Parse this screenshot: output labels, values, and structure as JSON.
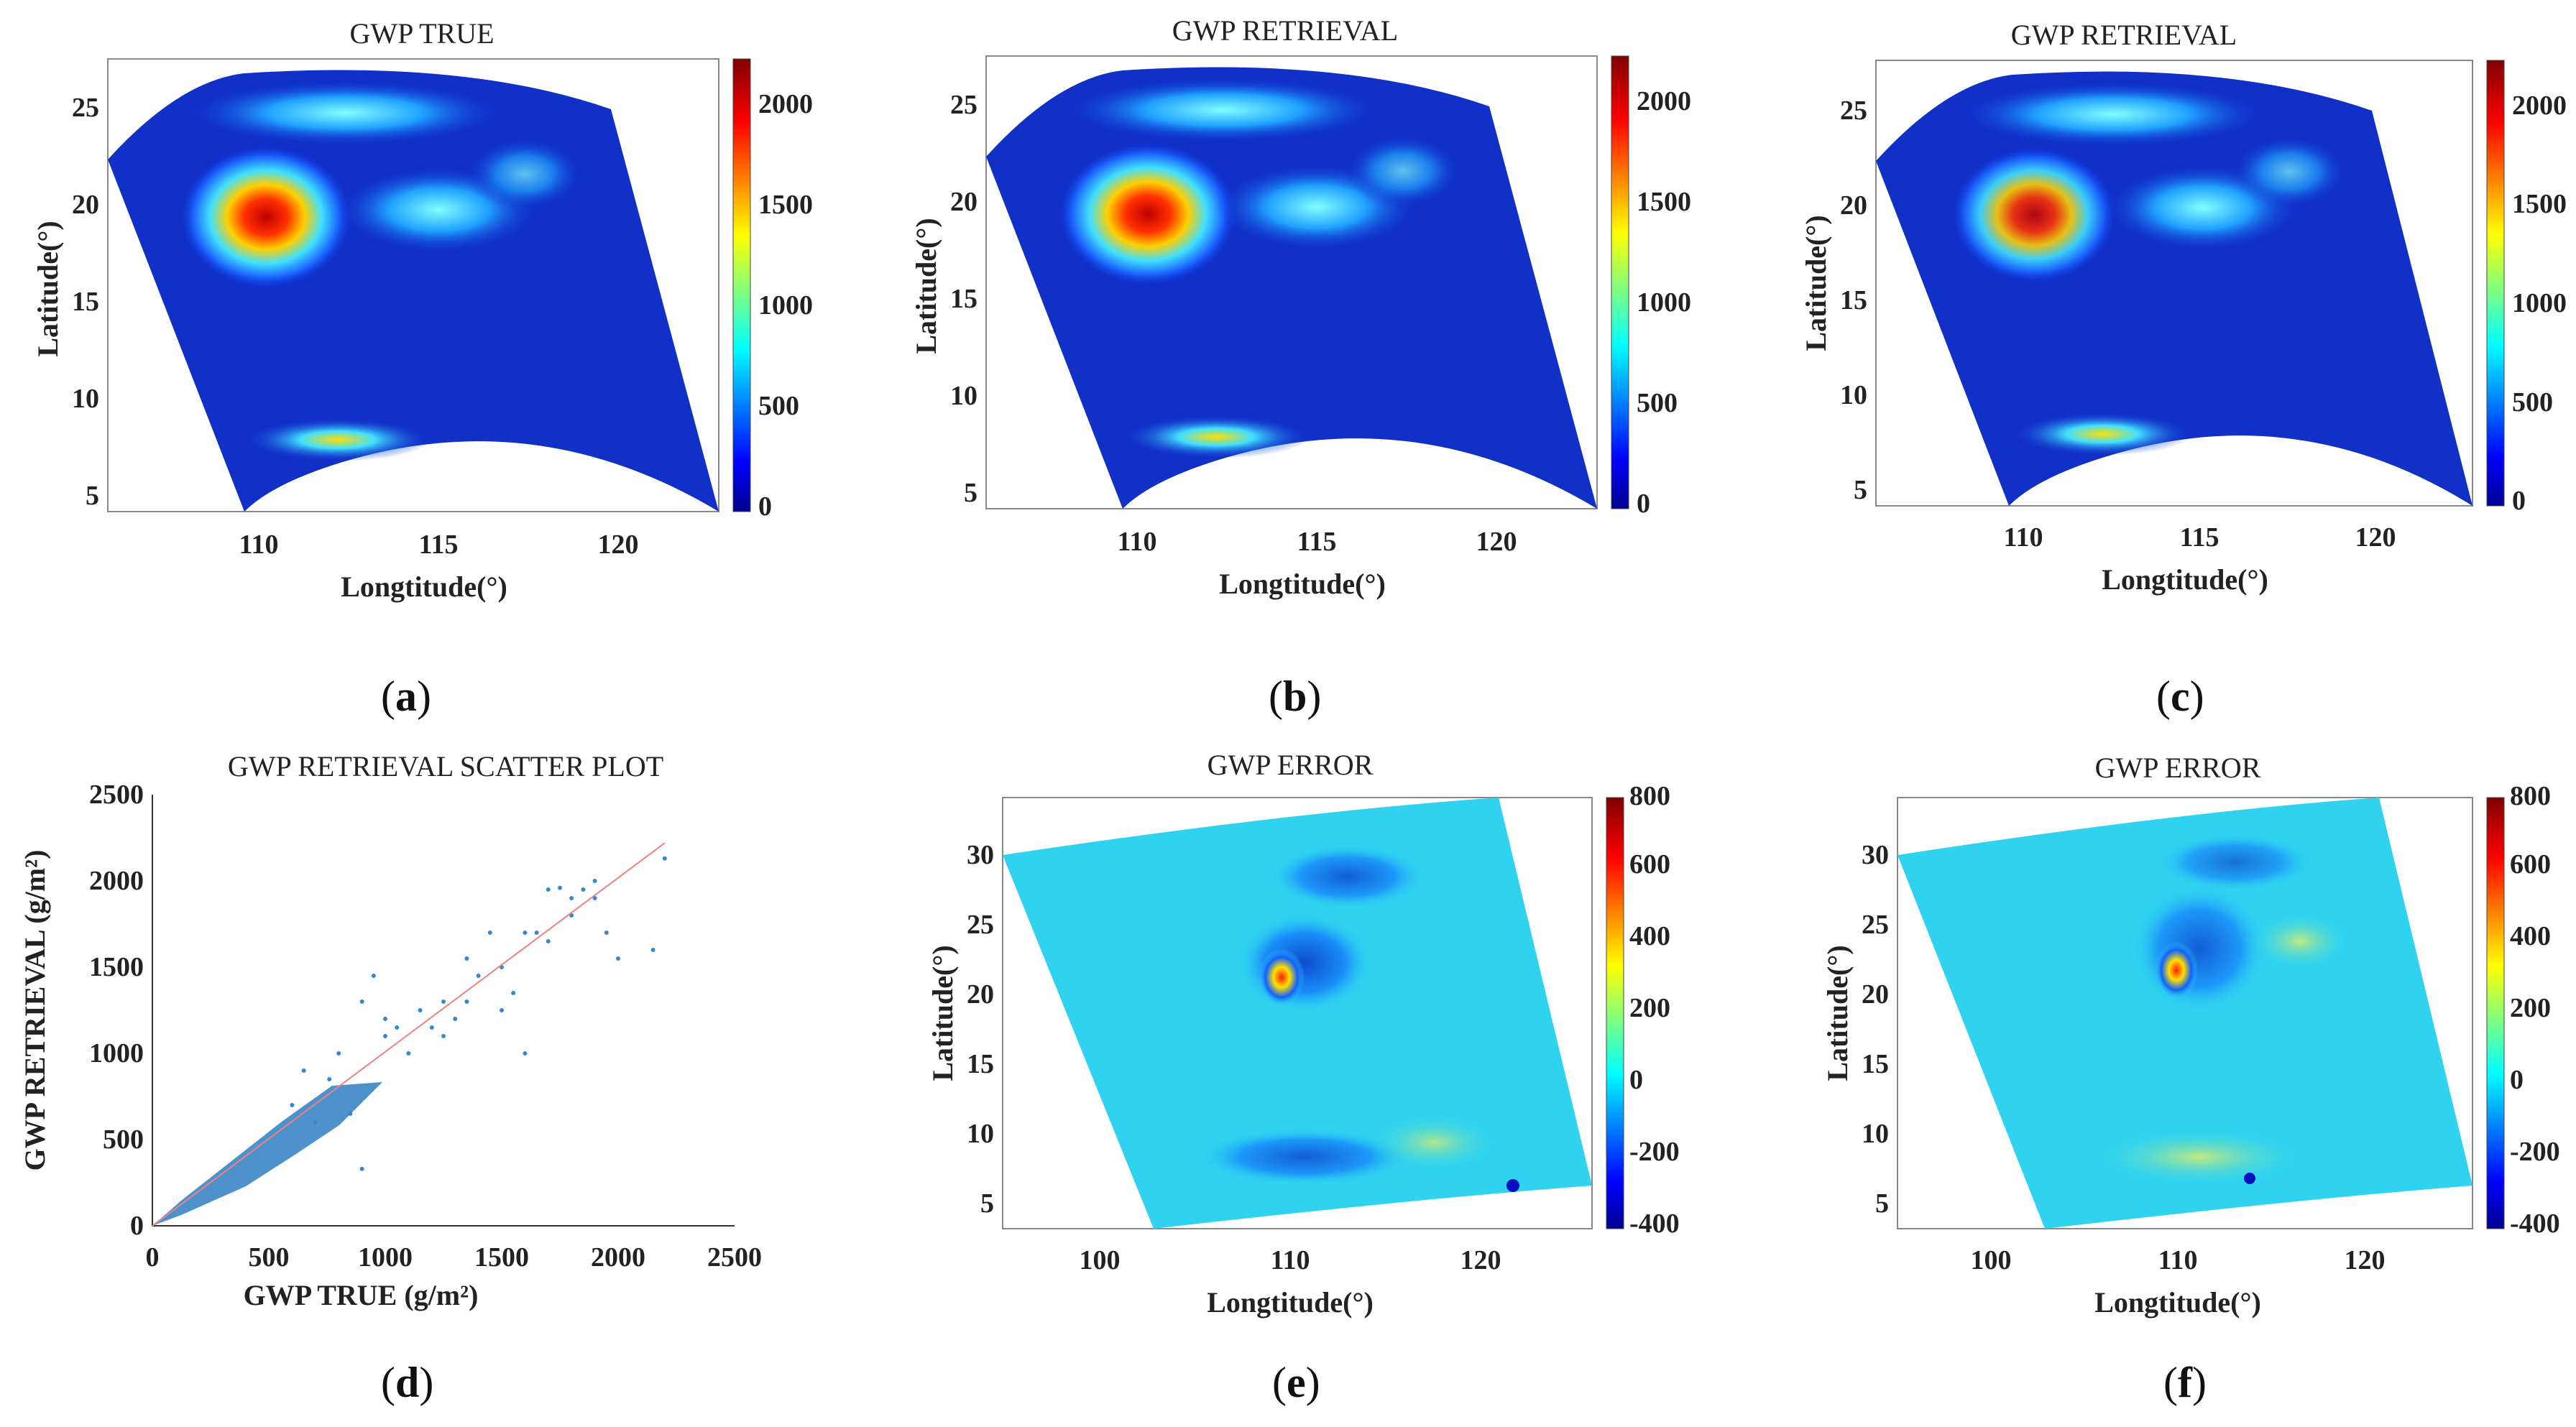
{
  "colors": {
    "jet_low": "#00008f",
    "jet_mid": "#00c8ff",
    "jet_high": "#800000",
    "scatter": "#3a86c8",
    "fit_line": "#f08080",
    "error_bg": "#2fd3f0"
  },
  "chart_data": [
    {
      "id": "a",
      "type": "heatmap",
      "title": "GWP TRUE",
      "xlabel": "Longtitude(°)",
      "ylabel": "Latitude(°)",
      "xticks": [
        "110",
        "115",
        "120"
      ],
      "yticks": [
        "5",
        "10",
        "15",
        "20",
        "25"
      ],
      "colorbar_ticks": [
        "0",
        "500",
        "1000",
        "1500",
        "2000"
      ],
      "colorbar_range": [
        0,
        2200
      ],
      "caption": "a"
    },
    {
      "id": "b",
      "type": "heatmap",
      "title": "GWP RETRIEVAL",
      "xlabel": "Longtitude(°)",
      "ylabel": "Latitude(°)",
      "xticks": [
        "110",
        "115",
        "120"
      ],
      "yticks": [
        "5",
        "10",
        "15",
        "20",
        "25"
      ],
      "colorbar_ticks": [
        "0",
        "500",
        "1000",
        "1500",
        "2000"
      ],
      "colorbar_range": [
        0,
        2200
      ],
      "caption": "b"
    },
    {
      "id": "c",
      "type": "heatmap",
      "title": "GWP RETRIEVAL",
      "xlabel": "Longtitude(°)",
      "ylabel": "Latitude(°)",
      "xticks": [
        "110",
        "115",
        "120"
      ],
      "yticks": [
        "5",
        "10",
        "15",
        "20",
        "25"
      ],
      "colorbar_ticks": [
        "0",
        "500",
        "1000",
        "1500",
        "2000"
      ],
      "colorbar_range": [
        0,
        2200
      ],
      "caption": "c"
    },
    {
      "id": "d",
      "type": "scatter",
      "title": "GWP RETRIEVAL SCATTER PLOT",
      "xlabel": "GWP TRUE (g/m²)",
      "ylabel": "GWP RETRIEVAL (g/m²)",
      "xticks": [
        "0",
        "500",
        "1000",
        "1500",
        "2000",
        "2500"
      ],
      "yticks": [
        "0",
        "500",
        "1000",
        "1500",
        "2000",
        "2500"
      ],
      "xlim": [
        0,
        2500
      ],
      "ylim": [
        0,
        2500
      ],
      "points": [
        [
          1650,
          1700
        ],
        [
          1700,
          1950
        ],
        [
          1750,
          1960
        ],
        [
          1800,
          1800
        ],
        [
          1850,
          1950
        ],
        [
          1900,
          2000
        ],
        [
          1950,
          1700
        ],
        [
          2000,
          1550
        ],
        [
          2150,
          1600
        ],
        [
          2200,
          2130
        ],
        [
          1500,
          1250
        ],
        [
          1550,
          1350
        ],
        [
          1600,
          1000
        ],
        [
          1450,
          1700
        ],
        [
          1400,
          1450
        ],
        [
          1300,
          1200
        ],
        [
          1350,
          1550
        ],
        [
          1250,
          1100
        ],
        [
          900,
          1300
        ],
        [
          950,
          1450
        ],
        [
          1000,
          1200
        ],
        [
          1100,
          1000
        ],
        [
          1200,
          1150
        ],
        [
          1050,
          1150
        ],
        [
          850,
          650
        ],
        [
          800,
          1000
        ],
        [
          760,
          850
        ],
        [
          700,
          600
        ],
        [
          900,
          330
        ],
        [
          650,
          900
        ],
        [
          600,
          700
        ],
        [
          1150,
          1250
        ],
        [
          1350,
          1300
        ],
        [
          1600,
          1700
        ],
        [
          1700,
          1650
        ],
        [
          1800,
          1900
        ],
        [
          1500,
          1500
        ],
        [
          1900,
          1900
        ],
        [
          1250,
          1300
        ],
        [
          1000,
          1100
        ]
      ],
      "fit_line": [
        [
          0,
          0
        ],
        [
          2200,
          2220
        ]
      ],
      "caption": "d"
    },
    {
      "id": "e",
      "type": "heatmap",
      "title": "GWP ERROR",
      "xlabel": "Longtitude(°)",
      "ylabel": "Latitude(°)",
      "xticks": [
        "100",
        "110",
        "120"
      ],
      "yticks": [
        "5",
        "10",
        "15",
        "20",
        "25",
        "30"
      ],
      "colorbar_ticks": [
        "-400",
        "-200",
        "0",
        "200",
        "400",
        "600",
        "800"
      ],
      "colorbar_range": [
        -400,
        800
      ],
      "caption": "e"
    },
    {
      "id": "f",
      "type": "heatmap",
      "title": "GWP ERROR",
      "xlabel": "Longtitude(°)",
      "ylabel": "Latitude(°)",
      "xticks": [
        "100",
        "110",
        "120"
      ],
      "yticks": [
        "5",
        "10",
        "15",
        "20",
        "25",
        "30"
      ],
      "colorbar_ticks": [
        "-400",
        "-200",
        "0",
        "200",
        "400",
        "600",
        "800"
      ],
      "colorbar_range": [
        -400,
        800
      ],
      "caption": "f"
    }
  ]
}
